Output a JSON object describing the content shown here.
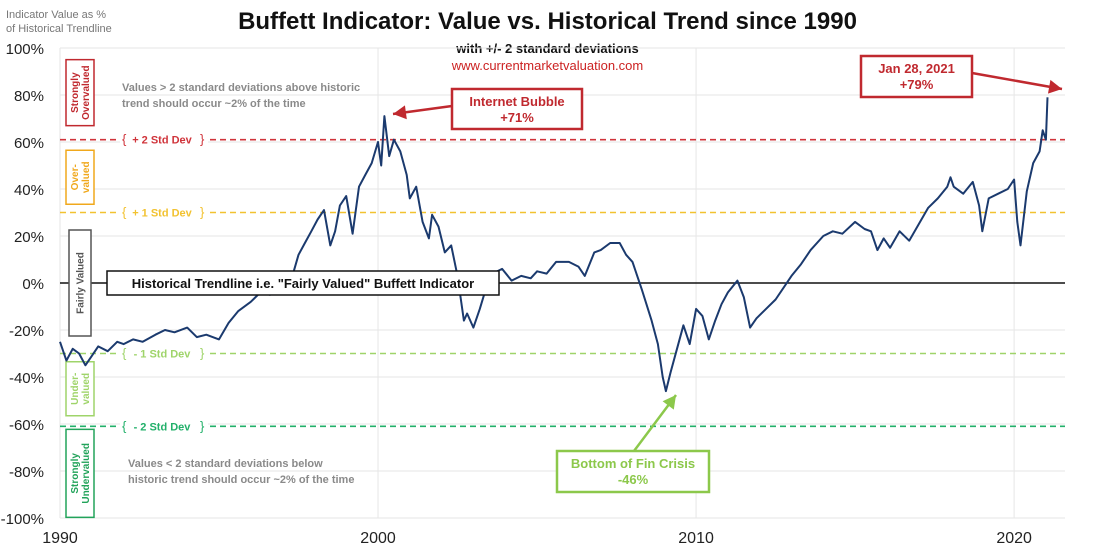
{
  "page": {
    "title": "Buffett Indicator: Value vs. Historical Trend since 1990",
    "subtitle": "with +/- 2 standard deviations",
    "source": "www.currentmarketvaluation.com",
    "y_axis_title_line1": "Indicator Value as %",
    "y_axis_title_line2": "of Historical Trendline"
  },
  "colors": {
    "series": "#1b3a6e",
    "plus2": "#d0343b",
    "plus1": "#f2c230",
    "trend": "#111111",
    "minus1": "#9fd46a",
    "minus2": "#22b06a",
    "strongly_overvalued": "#c0292f",
    "overvalued": "#f0a81c",
    "fairly_valued": "#555555",
    "undervalued": "#9fd46a",
    "strongly_undervalued": "#22a35a",
    "crisis_annotation": "#8cc84b"
  },
  "chart_data": {
    "type": "line",
    "title": "Buffett Indicator: Value vs. Historical Trend since 1990",
    "ylabel": "Indicator Value as % of Historical Trendline",
    "xlim": [
      1990,
      2021.6
    ],
    "ylim": [
      -100,
      100
    ],
    "x_ticks": [
      1990,
      2000,
      2010,
      2020
    ],
    "x_tick_labels": [
      "1990",
      "2000",
      "2010",
      "2020"
    ],
    "y_ticks": [
      100,
      80,
      60,
      40,
      20,
      0,
      -20,
      -40,
      -60,
      -80,
      -100
    ],
    "y_tick_labels": [
      "100%",
      "80%",
      "60%",
      "40%",
      "20%",
      "0%",
      "-20%",
      "-40%",
      "-60%",
      "-80%",
      "-100%"
    ],
    "grid": true,
    "reference_lines": [
      {
        "label": "+ 2 Std Dev",
        "y": 61,
        "key": "plus2"
      },
      {
        "label": "+ 1 Std Dev",
        "y": 30,
        "key": "plus1"
      },
      {
        "label": "- 1 Std Dev",
        "y": -30,
        "key": "minus1"
      },
      {
        "label": "- 2 Std Dev",
        "y": -61,
        "key": "minus2"
      }
    ],
    "trendline": {
      "label": "Historical Trendline i.e. \"Fairly Valued\" Buffett Indicator",
      "y": 0
    },
    "zones": [
      {
        "label": "Strongly Overvalued",
        "key": "strongly_overvalued",
        "y_center": 81
      },
      {
        "label": "Over-valued",
        "key": "overvalued",
        "y_center": 45
      },
      {
        "label": "Fairly Valued",
        "key": "fairly_valued",
        "y_center": 0
      },
      {
        "label": "Under-valued",
        "key": "undervalued",
        "y_center": -45
      },
      {
        "label": "Strongly Undervalued",
        "key": "strongly_undervalued",
        "y_center": -81
      }
    ],
    "notes": [
      {
        "line1": "Values > 2 standard deviations above historic",
        "line2": "trend should occur ~2% of the time"
      },
      {
        "line1": "Values < 2 standard deviations below",
        "line2": "historic trend should occur ~2% of the time"
      }
    ],
    "annotations": [
      {
        "line1": "Internet Bubble",
        "line2": "+71%",
        "x": 2000.2,
        "y": 71,
        "key": "strongly_overvalued"
      },
      {
        "line1": "Jan 28, 2021",
        "line2": "+79%",
        "x": 2021.05,
        "y": 79,
        "key": "strongly_overvalued"
      },
      {
        "line1": "Bottom of Fin Crisis",
        "line2": "-46%",
        "x": 2009.2,
        "y": -46,
        "key": "crisis_annotation"
      }
    ],
    "series": [
      {
        "x": [
          1990.0,
          1990.2,
          1990.4,
          1990.6,
          1990.8,
          1991.0,
          1991.2,
          1991.5,
          1991.8,
          1992.0,
          1992.3,
          1992.6,
          1993.0,
          1993.3,
          1993.6,
          1994.0,
          1994.3,
          1994.6,
          1995.0,
          1995.3,
          1995.6,
          1996.0,
          1996.3,
          1996.6,
          1997.0,
          1997.2,
          1997.5,
          1997.7,
          1997.9,
          1998.1,
          1998.3,
          1998.5,
          1998.65,
          1998.8,
          1999.0,
          1999.2,
          1999.4,
          1999.6,
          1999.8,
          2000.0,
          2000.1,
          2000.2,
          2000.35,
          2000.5,
          2000.7,
          2000.9,
          2001.0,
          2001.2,
          2001.4,
          2001.6,
          2001.7,
          2001.9,
          2002.1,
          2002.3,
          2002.5,
          2002.7,
          2002.8,
          2003.0,
          2003.2,
          2003.4,
          2003.6,
          2003.9,
          2004.2,
          2004.5,
          2004.8,
          2005.0,
          2005.3,
          2005.6,
          2006.0,
          2006.3,
          2006.5,
          2006.8,
          2007.0,
          2007.3,
          2007.6,
          2007.8,
          2008.0,
          2008.3,
          2008.6,
          2008.8,
          2008.95,
          2009.05,
          2009.2,
          2009.4,
          2009.6,
          2009.8,
          2010.0,
          2010.2,
          2010.4,
          2010.6,
          2010.8,
          2011.0,
          2011.3,
          2011.5,
          2011.7,
          2011.9,
          2012.2,
          2012.5,
          2012.8,
          2013.0,
          2013.3,
          2013.6,
          2014.0,
          2014.3,
          2014.6,
          2015.0,
          2015.3,
          2015.5,
          2015.7,
          2015.9,
          2016.1,
          2016.4,
          2016.7,
          2017.0,
          2017.3,
          2017.6,
          2017.9,
          2018.0,
          2018.1,
          2018.4,
          2018.7,
          2018.9,
          2019.0,
          2019.2,
          2019.5,
          2019.8,
          2020.0,
          2020.1,
          2020.2,
          2020.4,
          2020.6,
          2020.8,
          2020.9,
          2021.0,
          2021.05
        ],
        "values": [
          -25,
          -33,
          -28,
          -30,
          -35,
          -31,
          -27,
          -29,
          -25,
          -26,
          -24,
          -25,
          -22,
          -20,
          -21,
          -19,
          -23,
          -22,
          -24,
          -17,
          -12,
          -8,
          -4,
          -5,
          3,
          -2,
          12,
          17,
          22,
          27,
          31,
          16,
          22,
          33,
          37,
          21,
          41,
          46,
          51,
          60,
          50,
          71,
          54,
          61,
          56,
          46,
          36,
          41,
          26,
          19,
          29,
          24,
          13,
          16,
          3,
          -16,
          -13,
          -19,
          -11,
          -2,
          4,
          6,
          1,
          3,
          2,
          5,
          4,
          9,
          9,
          7,
          3,
          13,
          14,
          17,
          17,
          12,
          9,
          -3,
          -16,
          -26,
          -40,
          -46,
          -38,
          -28,
          -18,
          -26,
          -11,
          -14,
          -24,
          -16,
          -9,
          -4,
          1,
          -6,
          -19,
          -15,
          -11,
          -7,
          -1,
          3,
          8,
          14,
          20,
          22,
          21,
          26,
          23,
          22,
          14,
          19,
          15,
          22,
          18,
          25,
          32,
          36,
          41,
          45,
          41,
          38,
          43,
          33,
          22,
          36,
          38,
          40,
          44,
          26,
          16,
          39,
          51,
          56,
          65,
          61,
          79
        ]
      }
    ]
  }
}
